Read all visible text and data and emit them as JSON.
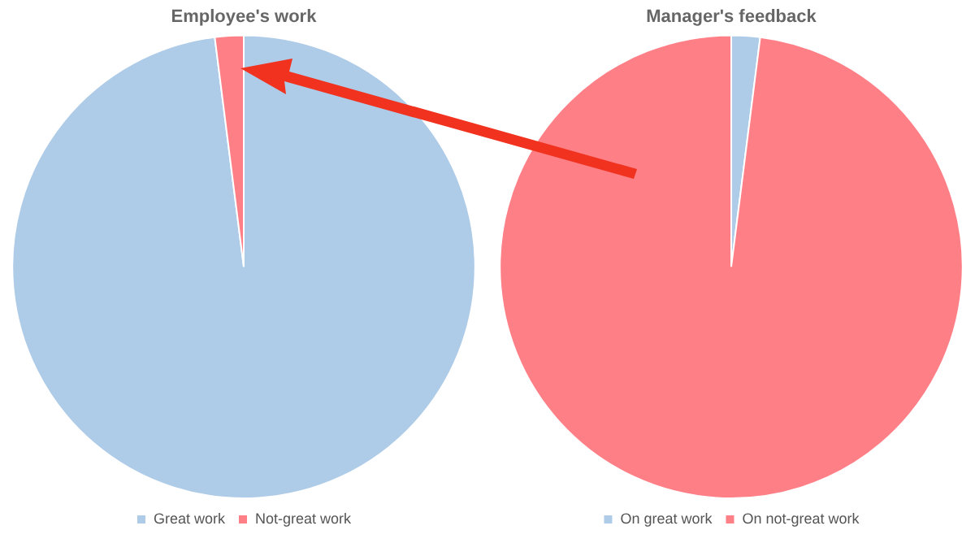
{
  "chart_data": [
    {
      "type": "pie",
      "title": "Employee's work",
      "categories": [
        "Great work",
        "Not-great work"
      ],
      "values": [
        98,
        2
      ],
      "colors": [
        "#aecbe8",
        "#ff7f87"
      ],
      "legend": "bottom"
    },
    {
      "type": "pie",
      "title": "Manager's feedback",
      "categories": [
        "On great work",
        "On not-great work"
      ],
      "values": [
        2,
        98
      ],
      "colors": [
        "#aecbe8",
        "#ff7f87"
      ],
      "legend": "bottom"
    }
  ]
}
